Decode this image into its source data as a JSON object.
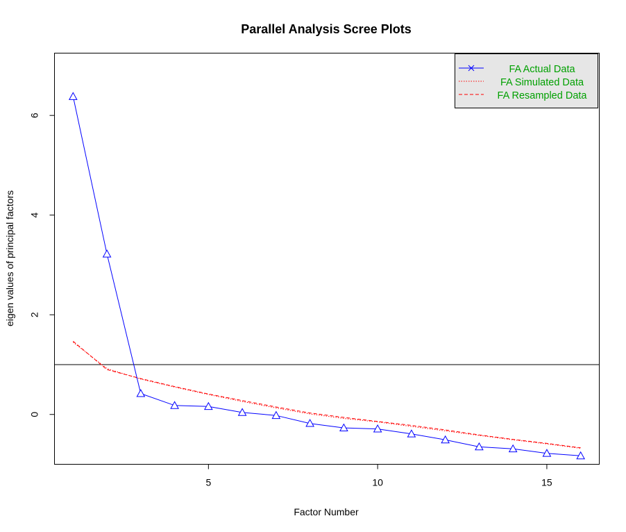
{
  "chart_data": {
    "type": "line",
    "title": "Parallel Analysis Scree Plots",
    "xlabel": "Factor Number",
    "ylabel": "eigen values of principal factors",
    "xlim": [
      0.45,
      16.55
    ],
    "ylim": [
      -1.0,
      7.25
    ],
    "xticks": [
      5,
      10,
      15
    ],
    "yticks": [
      0,
      2,
      4,
      6
    ],
    "reference_line": 1,
    "x": [
      1,
      2,
      3,
      4,
      5,
      6,
      7,
      8,
      9,
      10,
      11,
      12,
      13,
      14,
      15,
      16
    ],
    "series": [
      {
        "name": "FA  Actual Data",
        "color": "#0000ff",
        "line": "solid",
        "marker": "triangle",
        "values": [
          6.38,
          3.22,
          0.42,
          0.18,
          0.16,
          0.04,
          -0.02,
          -0.18,
          -0.27,
          -0.29,
          -0.39,
          -0.51,
          -0.65,
          -0.69,
          -0.78,
          -0.83
        ]
      },
      {
        "name": "FA  Simulated Data",
        "color": "#ff0000",
        "line": "dotted",
        "values": [
          1.45,
          0.92,
          0.71,
          0.55,
          0.4,
          0.26,
          0.13,
          0.01,
          -0.08,
          -0.15,
          -0.24,
          -0.33,
          -0.42,
          -0.51,
          -0.59,
          -0.68
        ]
      },
      {
        "name": "FA  Resampled Data",
        "color": "#ff0000",
        "line": "dashed",
        "values": [
          1.47,
          0.9,
          0.72,
          0.56,
          0.41,
          0.28,
          0.15,
          0.03,
          -0.06,
          -0.14,
          -0.22,
          -0.31,
          -0.41,
          -0.5,
          -0.58,
          -0.67
        ]
      }
    ],
    "legend": {
      "position": "top-right",
      "background": "#e6e6e6",
      "text_color": "#00a000",
      "entries": [
        "FA  Actual Data",
        "FA  Simulated Data",
        "FA  Resampled Data"
      ]
    },
    "actual_marker_legend": "x"
  }
}
